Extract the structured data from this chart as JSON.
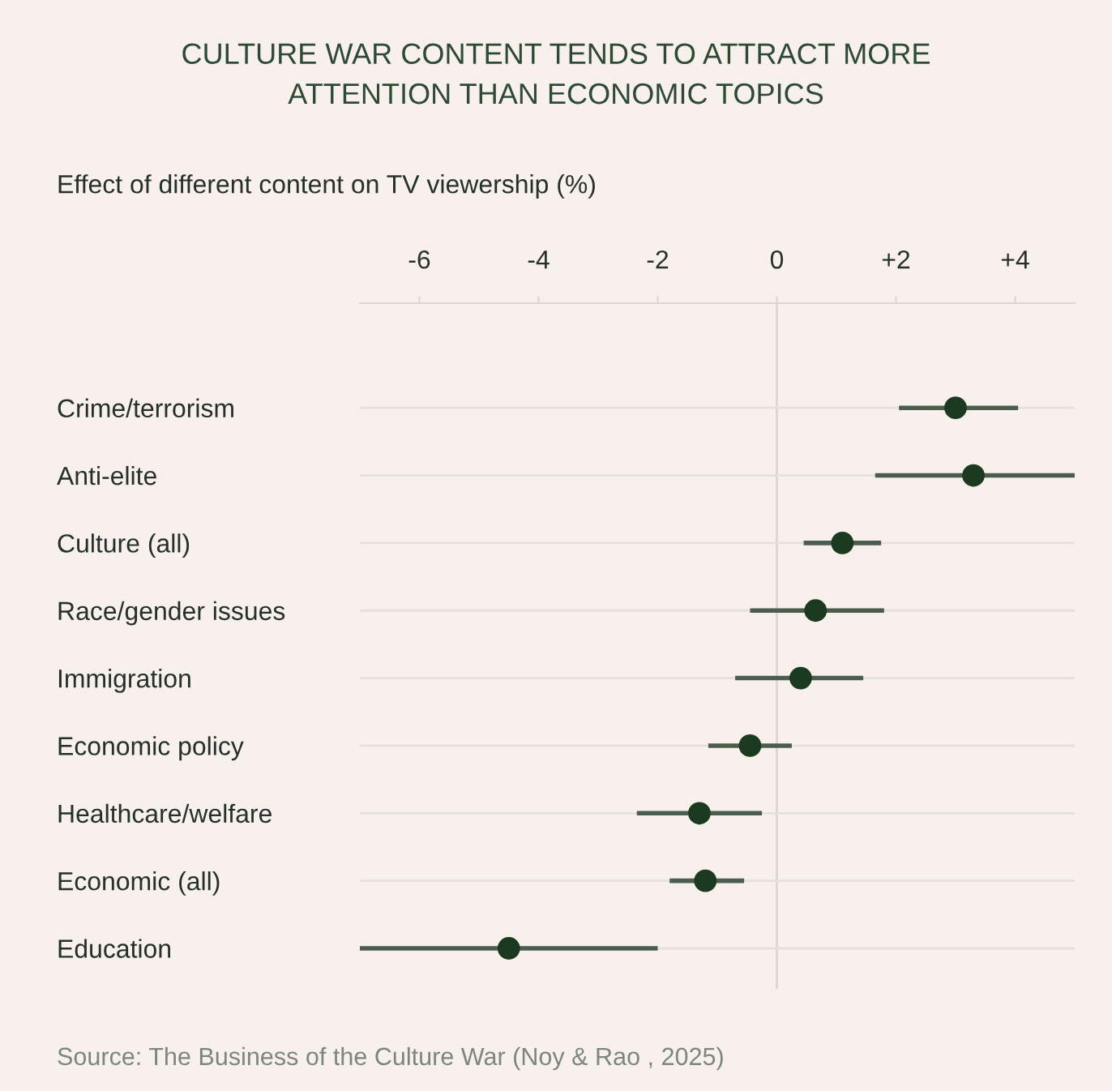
{
  "chart_data": {
    "type": "scatter",
    "orientation": "horizontal",
    "title": "CULTURE WAR CONTENT TENDS TO ATTRACT MORE\nATTENTION THAN ECONOMIC TOPICS",
    "subtitle": "Effect of different content on TV viewership (%)",
    "annotations": [
      "Source: The Business of the Culture War (Noy & Rao , 2025)"
    ],
    "categories": [
      "Crime/terrorism",
      "Anti-elite",
      "Culture (all)",
      "Race/gender issues",
      "Immigration",
      "Economic policy",
      "Healthcare/welfare",
      "Economic (all)",
      "Education"
    ],
    "values": [
      3.0,
      3.3,
      1.1,
      0.65,
      0.4,
      -0.45,
      -1.3,
      -1.2,
      -4.5
    ],
    "errors": [
      [
        2.05,
        4.05
      ],
      [
        1.65,
        5.0
      ],
      [
        0.45,
        1.75
      ],
      [
        -0.45,
        1.8
      ],
      [
        -0.7,
        1.45
      ],
      [
        -1.15,
        0.25
      ],
      [
        -2.35,
        -0.25
      ],
      [
        -1.8,
        -0.55
      ],
      [
        -7.0,
        -2.0
      ]
    ],
    "color": "#1b3a20",
    "xlim": [
      -7.0,
      5.0
    ],
    "xticks": [
      {
        "value": -6,
        "label": "-6"
      },
      {
        "value": -4,
        "label": "-4"
      },
      {
        "value": -2,
        "label": "-2"
      },
      0,
      {
        "value": 2,
        "label": "+2"
      },
      {
        "value": 4,
        "label": "+4"
      }
    ],
    "ref_lines": [
      {
        "axis": "x",
        "value": 0,
        "color": "#dcd6d2"
      }
    ],
    "grid": "y",
    "marker": "circle",
    "legend": false
  }
}
